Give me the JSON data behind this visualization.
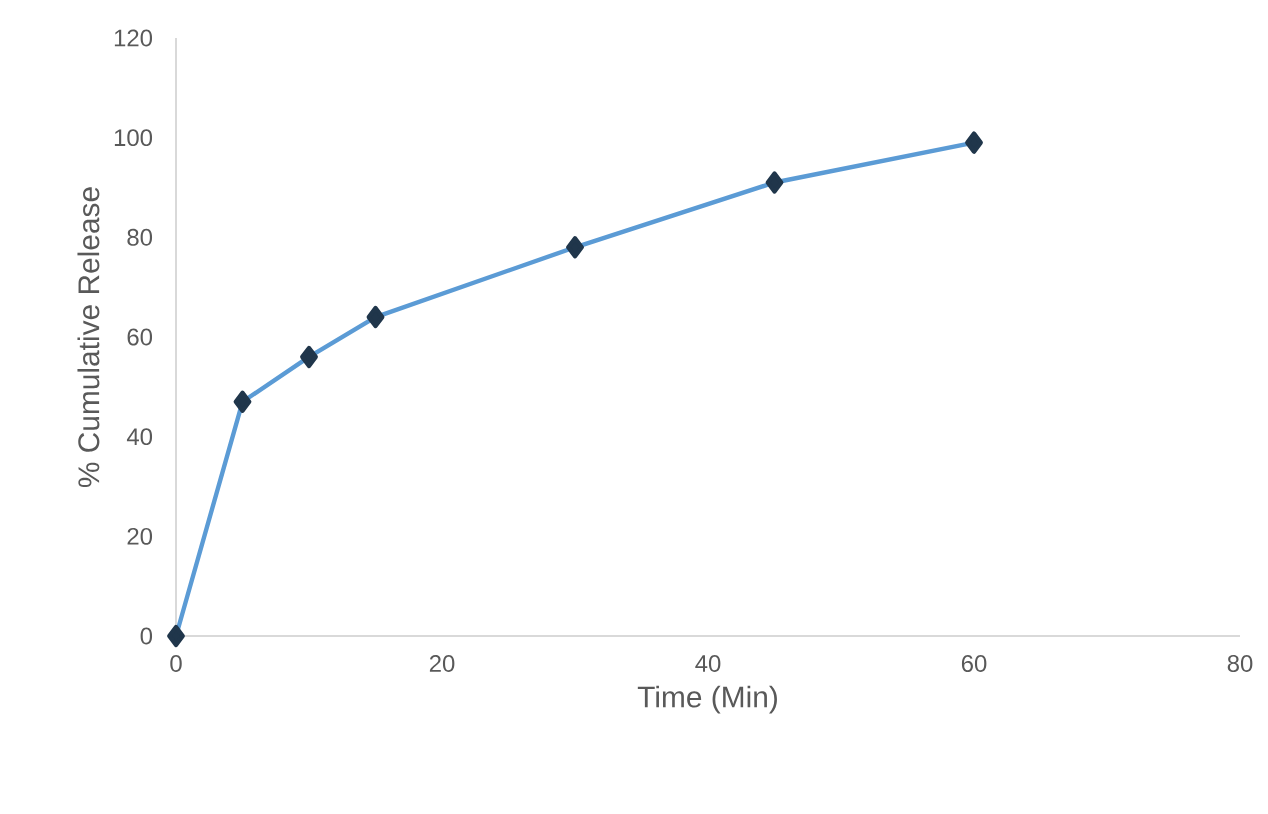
{
  "chart_data": {
    "type": "line",
    "xlabel": "Time (Min)",
    "ylabel": "% Cumulative Release",
    "x": [
      0,
      5,
      10,
      15,
      30,
      45,
      60
    ],
    "series": [
      {
        "color": "#5b9bd5",
        "values": [
          0,
          47,
          56,
          64,
          78,
          91,
          99
        ]
      }
    ],
    "xlim": [
      0,
      80
    ],
    "ylim": [
      0,
      120
    ],
    "xticks": [
      0,
      20,
      40,
      60,
      80
    ],
    "yticks": [
      0,
      20,
      40,
      60,
      80,
      100,
      120
    ],
    "marker": "diamond",
    "line_style": "solid"
  }
}
